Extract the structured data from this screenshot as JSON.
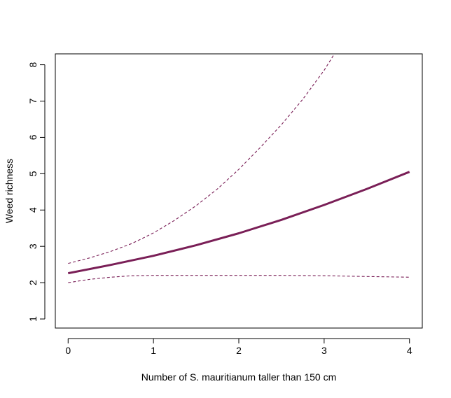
{
  "chart_data": {
    "type": "line",
    "title": "",
    "xlabel": "Number of S. mauritianum taller than 150 cm",
    "ylabel": "Weed richness",
    "xlim": [
      -0.15,
      4.15
    ],
    "ylim": [
      0.75,
      8.3
    ],
    "x_ticks": [
      0,
      1,
      2,
      3,
      4
    ],
    "y_ticks": [
      1,
      2,
      3,
      4,
      5,
      6,
      7,
      8
    ],
    "grid": false,
    "legend": "none",
    "series": [
      {
        "role": "fit",
        "style": "solid",
        "color": "#7a1f57",
        "x": [
          0,
          0.5,
          1,
          1.5,
          2,
          2.5,
          3,
          3.5,
          4
        ],
        "y": [
          2.26,
          2.49,
          2.74,
          3.03,
          3.36,
          3.73,
          4.14,
          4.58,
          5.05
        ]
      },
      {
        "role": "upper confidence limit",
        "style": "dashed",
        "color": "#7a1f57",
        "x": [
          0,
          0.25,
          0.5,
          0.75,
          1,
          1.25,
          1.5,
          1.75,
          2,
          2.25,
          2.5,
          2.75,
          3,
          3.12
        ],
        "y": [
          2.53,
          2.68,
          2.86,
          3.08,
          3.37,
          3.72,
          4.12,
          4.58,
          5.12,
          5.72,
          6.35,
          7.05,
          7.85,
          8.3
        ]
      },
      {
        "role": "lower confidence limit",
        "style": "dashed",
        "color": "#7a1f57",
        "x": [
          0,
          0.25,
          0.5,
          0.75,
          1,
          1.5,
          2,
          2.5,
          3,
          3.5,
          4
        ],
        "y": [
          2.0,
          2.09,
          2.15,
          2.19,
          2.2,
          2.2,
          2.2,
          2.2,
          2.19,
          2.17,
          2.15
        ]
      }
    ]
  }
}
